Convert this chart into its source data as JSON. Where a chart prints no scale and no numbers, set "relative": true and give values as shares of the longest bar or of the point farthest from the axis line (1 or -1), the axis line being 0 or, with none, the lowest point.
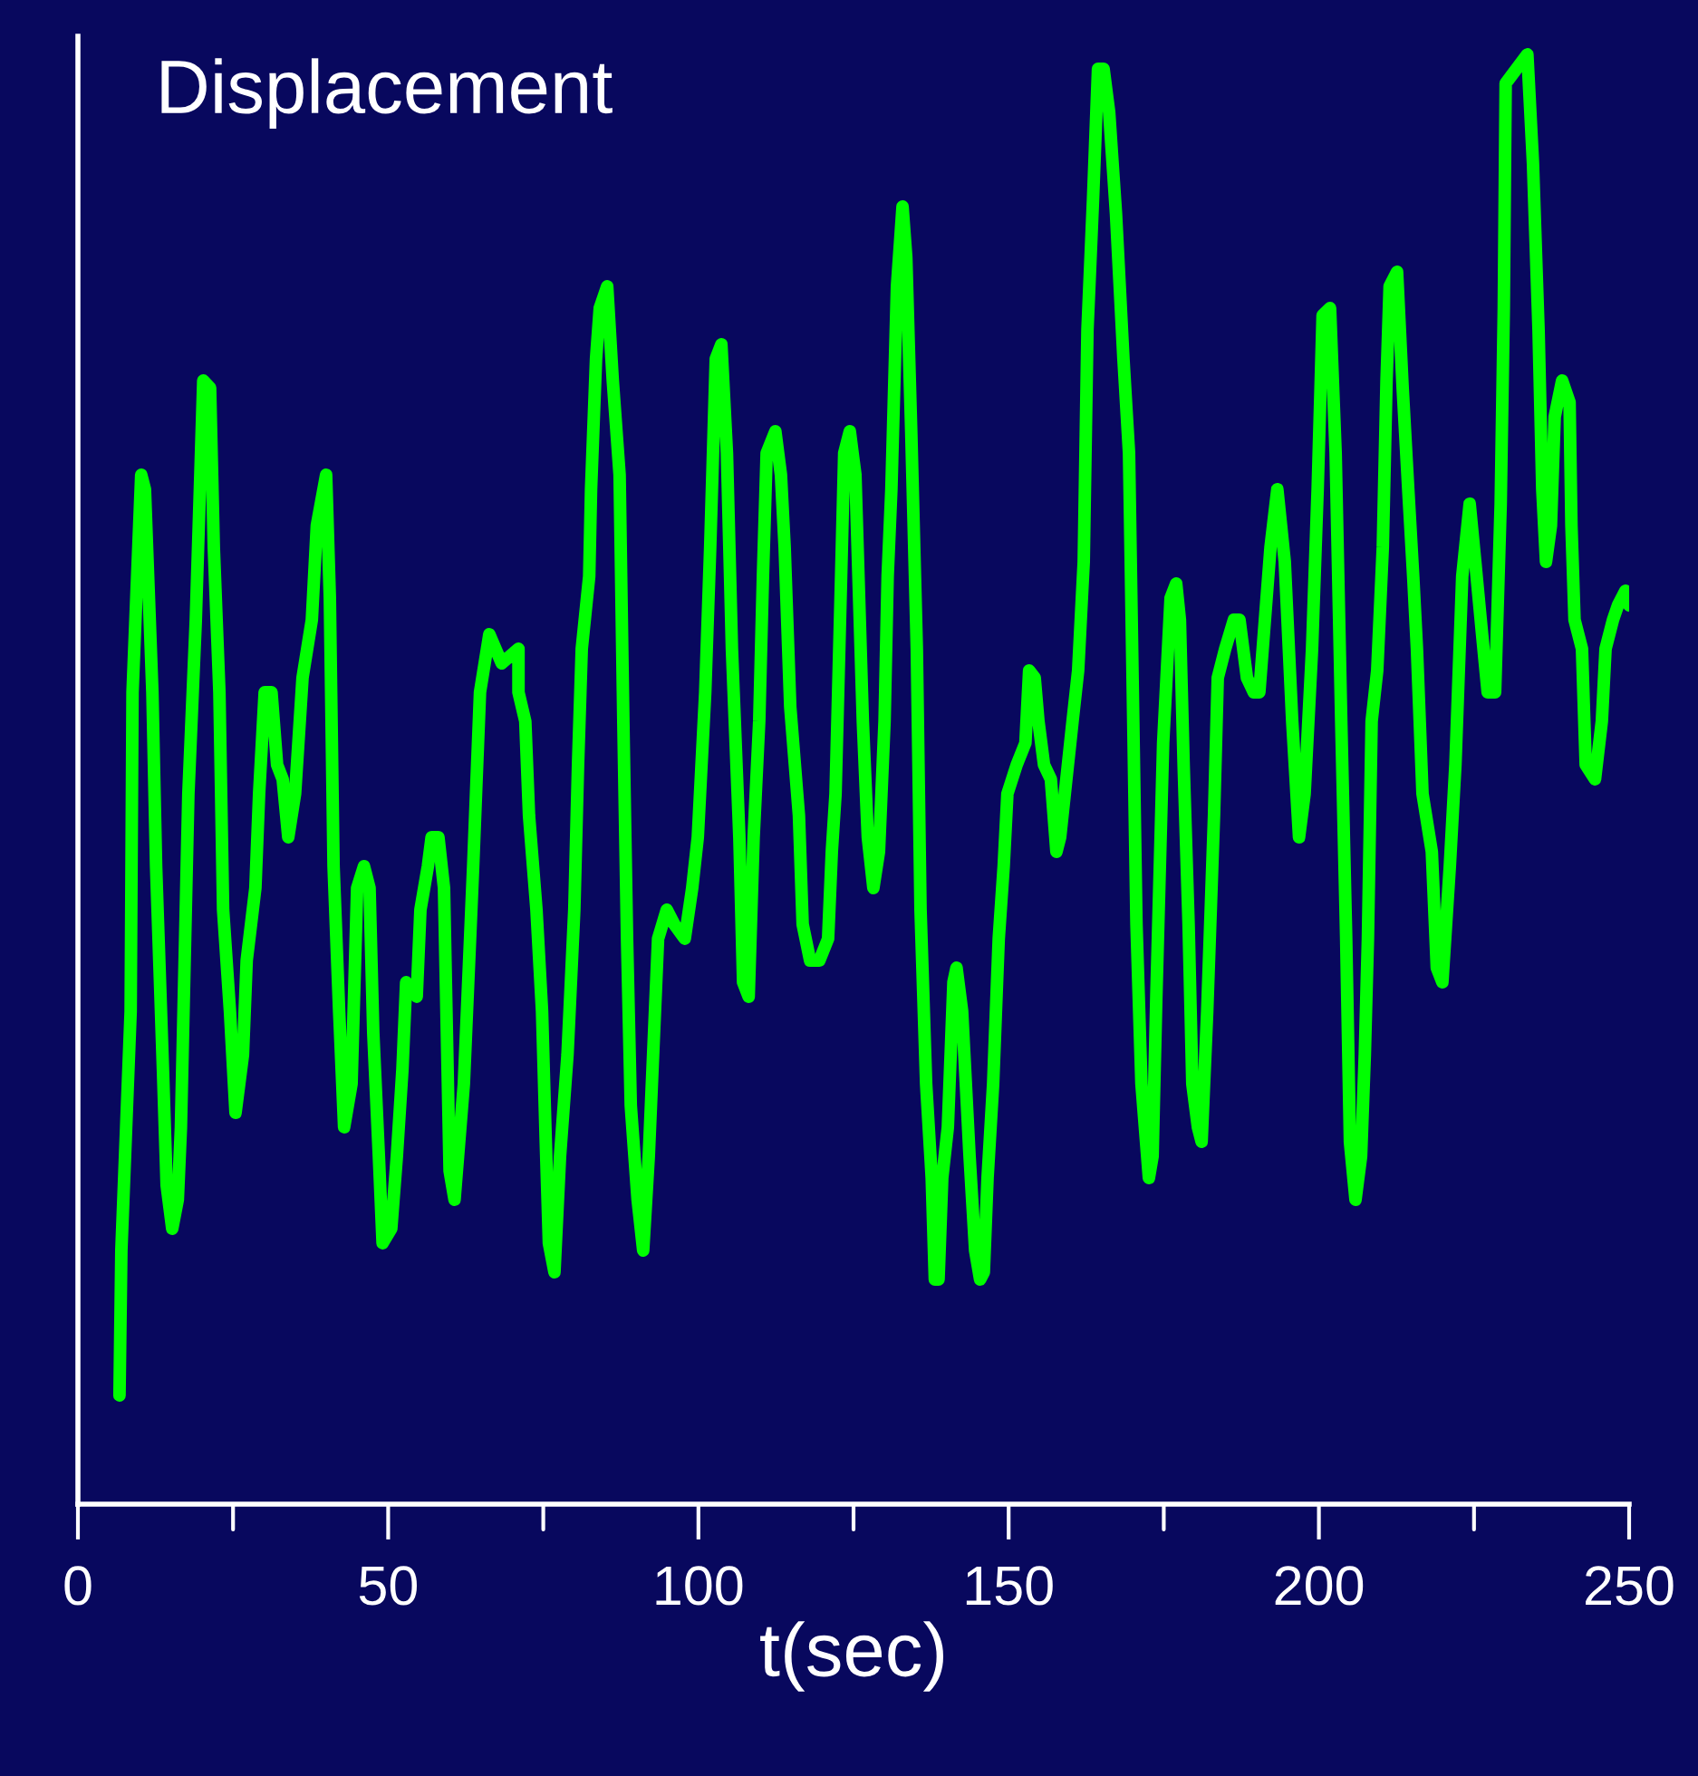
{
  "chart_data": {
    "type": "line",
    "title": "Displacement",
    "xlabel": "t(sec)",
    "relative": true,
    "tick_labels": "x",
    "grid": false,
    "legend": false,
    "marker": "none",
    "line_style": "solid",
    "xlim": [
      0,
      250
    ],
    "xticks": [
      0,
      {
        "value": 25,
        "label": null
      },
      50,
      {
        "value": 75,
        "label": null
      },
      100,
      {
        "value": 125,
        "label": null
      },
      150,
      {
        "value": 175,
        "label": null
      },
      200,
      {
        "value": 225,
        "label": null
      },
      250
    ],
    "series": [
      {
        "color": "#00ff00",
        "x": [
          6.7,
          7.0,
          8.5,
          8.8,
          10.2,
          10.8,
          12.0,
          12.6,
          13.7,
          14.3,
          15.2,
          16.1,
          16.6,
          17.8,
          19.0,
          20.2,
          21.3,
          21.9,
          22.8,
          23.4,
          24.5,
          25.4,
          26.6,
          27.2,
          28.6,
          29.2,
          30.1,
          31.2,
          32.1,
          33.0,
          33.9,
          35.0,
          36.2,
          37.7,
          38.5,
          40.0,
          40.6,
          41.2,
          42.1,
          42.9,
          44.1,
          45.0,
          46.1,
          47.0,
          47.6,
          48.5,
          49.1,
          50.5,
          51.4,
          52.3,
          52.9,
          54.6,
          55.2,
          56.4,
          57.0,
          58.1,
          59.0,
          59.9,
          60.7,
          62.2,
          63.7,
          64.8,
          66.3,
          68.3,
          71.0,
          71.0,
          72.1,
          72.7,
          73.9,
          74.8,
          75.4,
          75.9,
          76.8,
          77.7,
          78.9,
          80.0,
          80.6,
          81.2,
          82.4,
          82.7,
          83.5,
          84.1,
          85.3,
          86.2,
          87.3,
          87.9,
          88.5,
          89.1,
          90.2,
          91.1,
          92.0,
          92.6,
          93.5,
          94.9,
          96.1,
          97.8,
          99.0,
          99.9,
          101.1,
          101.9,
          102.8,
          103.7,
          104.6,
          105.4,
          106.6,
          107.2,
          108.1,
          108.9,
          109.8,
          110.4,
          111.0,
          112.4,
          113.3,
          113.9,
          114.8,
          116.2,
          116.8,
          118.0,
          119.5,
          120.9,
          121.5,
          122.1,
          123.0,
          123.5,
          124.4,
          125.3,
          126.5,
          127.3,
          128.2,
          129.1,
          130.0,
          130.5,
          131.1,
          132.0,
          132.9,
          133.5,
          134.3,
          135.2,
          135.8,
          136.7,
          137.6,
          138.1,
          138.7,
          139.3,
          140.2,
          141.1,
          141.6,
          142.5,
          143.1,
          143.7,
          144.6,
          145.4,
          146.0,
          146.6,
          147.5,
          148.4,
          149.2,
          149.8,
          151.3,
          152.7,
          153.3,
          154.2,
          154.8,
          155.7,
          156.8,
          157.7,
          158.3,
          160.3,
          161.2,
          162.1,
          162.7,
          163.6,
          164.4,
          165.3,
          166.2,
          167.3,
          168.5,
          169.4,
          170.6,
          171.4,
          172.6,
          173.2,
          173.8,
          174.9,
          176.1,
          177.0,
          177.6,
          178.2,
          179.0,
          179.6,
          180.5,
          181.1,
          182.0,
          183.1,
          183.7,
          184.9,
          186.3,
          187.2,
          188.4,
          189.5,
          190.4,
          191.3,
          192.2,
          193.3,
          194.5,
          195.7,
          196.8,
          197.7,
          198.9,
          199.8,
          200.6,
          201.8,
          202.7,
          203.6,
          204.4,
          205.0,
          205.9,
          206.8,
          207.4,
          207.9,
          208.5,
          209.4,
          210.3,
          210.9,
          211.4,
          212.6,
          213.5,
          214.4,
          215.2,
          215.8,
          216.7,
          218.2,
          219.0,
          219.9,
          221.1,
          222.0,
          223.1,
          224.3,
          225.2,
          226.3,
          227.2,
          228.4,
          229.3,
          229.8,
          230.1,
          233.6,
          234.5,
          235.4,
          236.0,
          236.6,
          237.4,
          238.0,
          239.2,
          240.4,
          240.7,
          241.2,
          242.4,
          243.0,
          244.5,
          245.6,
          246.2,
          247.4,
          248.2,
          249.4,
          250.0
        ],
        "values": [
          0.075,
          0.175,
          0.34,
          0.56,
          0.71,
          0.7,
          0.56,
          0.44,
          0.3,
          0.22,
          0.19,
          0.21,
          0.26,
          0.49,
          0.61,
          0.775,
          0.77,
          0.66,
          0.56,
          0.41,
          0.34,
          0.27,
          0.31,
          0.375,
          0.425,
          0.49,
          0.56,
          0.56,
          0.51,
          0.5,
          0.46,
          0.49,
          0.57,
          0.61,
          0.675,
          0.71,
          0.625,
          0.44,
          0.34,
          0.26,
          0.29,
          0.425,
          0.44,
          0.425,
          0.325,
          0.24,
          0.18,
          0.19,
          0.24,
          0.3,
          0.36,
          0.35,
          0.41,
          0.44,
          0.46,
          0.46,
          0.425,
          0.23,
          0.21,
          0.29,
          0.44,
          0.56,
          0.6,
          0.58,
          0.59,
          0.56,
          0.54,
          0.475,
          0.41,
          0.34,
          0.25,
          0.18,
          0.16,
          0.24,
          0.31,
          0.41,
          0.51,
          0.59,
          0.64,
          0.7,
          0.79,
          0.825,
          0.84,
          0.775,
          0.71,
          0.54,
          0.39,
          0.275,
          0.21,
          0.175,
          0.24,
          0.3,
          0.39,
          0.41,
          0.4,
          0.39,
          0.425,
          0.46,
          0.56,
          0.66,
          0.79,
          0.8,
          0.725,
          0.59,
          0.46,
          0.36,
          0.35,
          0.46,
          0.54,
          0.64,
          0.725,
          0.74,
          0.71,
          0.66,
          0.55,
          0.475,
          0.4,
          0.375,
          0.375,
          0.39,
          0.45,
          0.49,
          0.64,
          0.725,
          0.74,
          0.71,
          0.54,
          0.46,
          0.425,
          0.45,
          0.54,
          0.64,
          0.7,
          0.84,
          0.895,
          0.86,
          0.74,
          0.59,
          0.41,
          0.29,
          0.225,
          0.155,
          0.155,
          0.225,
          0.26,
          0.36,
          0.37,
          0.34,
          0.29,
          0.24,
          0.175,
          0.155,
          0.16,
          0.225,
          0.29,
          0.39,
          0.44,
          0.49,
          0.51,
          0.525,
          0.575,
          0.57,
          0.54,
          0.51,
          0.5,
          0.45,
          0.46,
          0.54,
          0.575,
          0.65,
          0.81,
          0.9,
          0.99,
          0.99,
          0.96,
          0.89,
          0.79,
          0.725,
          0.4,
          0.29,
          0.225,
          0.24,
          0.35,
          0.525,
          0.625,
          0.635,
          0.61,
          0.51,
          0.4,
          0.29,
          0.26,
          0.25,
          0.34,
          0.475,
          0.57,
          0.59,
          0.61,
          0.61,
          0.57,
          0.56,
          0.56,
          0.61,
          0.66,
          0.7,
          0.65,
          0.54,
          0.46,
          0.49,
          0.59,
          0.7,
          0.82,
          0.825,
          0.725,
          0.54,
          0.39,
          0.25,
          0.21,
          0.24,
          0.31,
          0.39,
          0.54,
          0.575,
          0.66,
          0.775,
          0.84,
          0.85,
          0.77,
          0.7,
          0.64,
          0.59,
          0.49,
          0.45,
          0.37,
          0.36,
          0.44,
          0.51,
          0.64,
          0.69,
          0.65,
          0.6,
          0.56,
          0.56,
          0.69,
          0.825,
          0.98,
          1.0,
          0.925,
          0.81,
          0.7,
          0.65,
          0.675,
          0.75,
          0.775,
          0.76,
          0.675,
          0.61,
          0.59,
          0.51,
          0.5,
          0.54,
          0.59,
          0.61,
          0.62,
          0.63,
          0.62
        ]
      }
    ]
  }
}
